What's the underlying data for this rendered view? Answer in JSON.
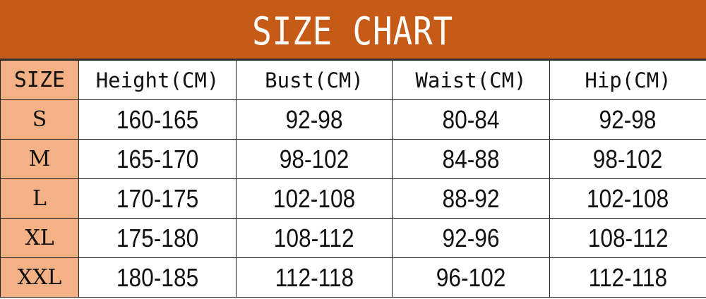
{
  "chart_data": {
    "type": "table",
    "title": "SIZE CHART",
    "columns": [
      "SIZE",
      "Height(CM)",
      "Bust(CM)",
      "Waist(CM)",
      "Hip(CM)"
    ],
    "rows": [
      [
        "S",
        "160-165",
        "92-98",
        "80-84",
        "92-98"
      ],
      [
        "M",
        "165-170",
        "98-102",
        "84-88",
        "98-102"
      ],
      [
        "L",
        "170-175",
        "102-108",
        "88-92",
        "102-108"
      ],
      [
        "XL",
        "175-180",
        "108-112",
        "92-96",
        "108-112"
      ],
      [
        "XXL",
        "180-185",
        "112-118",
        "96-102",
        "112-118"
      ]
    ],
    "colors": {
      "title_bg": "#c65a17",
      "size_column_bg": "#f4b185",
      "title_text": "#ffffff"
    }
  }
}
